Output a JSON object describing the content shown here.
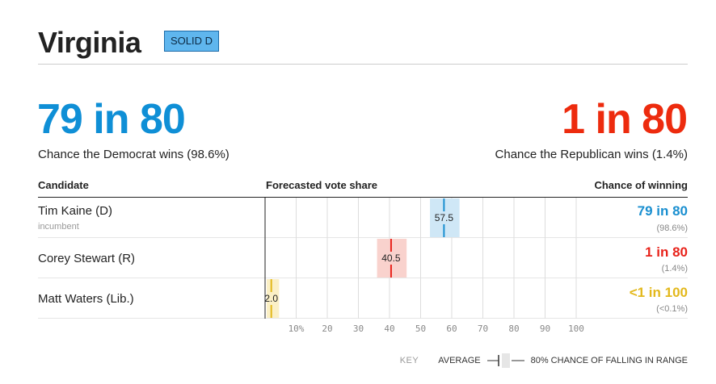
{
  "header": {
    "title": "Virginia",
    "rating": "SOLID D"
  },
  "odds": {
    "dem": {
      "value": "79 in 80",
      "caption": "Chance the Democrat wins (98.6%)",
      "color": "#0f8fd6"
    },
    "rep": {
      "value": "1 in 80",
      "caption": "Chance the Republican wins (1.4%)",
      "color": "#ed2b0e"
    }
  },
  "table": {
    "headers": {
      "candidate": "Candidate",
      "vote_share": "Forecasted vote share",
      "chance": "Chance of winning"
    },
    "rows": [
      {
        "name": "Tim Kaine (D)",
        "note": "incumbent",
        "win": "79 in 80",
        "win_pct": "(98.6%)"
      },
      {
        "name": "Corey Stewart (R)",
        "note": "",
        "win": "1 in 80",
        "win_pct": "(1.4%)"
      },
      {
        "name": "Matt Waters (Lib.)",
        "note": "",
        "win": "<1 in 100",
        "win_pct": "(<0.1%)"
      }
    ]
  },
  "chart_data": {
    "type": "range",
    "xlim": [
      0,
      100
    ],
    "ticks": [
      "10%",
      "20",
      "30",
      "40",
      "50",
      "60",
      "70",
      "80",
      "90",
      "100"
    ],
    "tick_values": [
      10,
      20,
      30,
      40,
      50,
      60,
      70,
      80,
      90,
      100
    ],
    "series": [
      {
        "name": "Tim Kaine (D)",
        "average": 57.5,
        "label": "57.5",
        "range": [
          53,
          62.5
        ],
        "color": "#1a8fd0",
        "range_color": "#cfe7f6"
      },
      {
        "name": "Corey Stewart (R)",
        "average": 40.5,
        "label": "40.5",
        "range": [
          36,
          45.5
        ],
        "color": "#e8231b",
        "range_color": "#f9d2cd"
      },
      {
        "name": "Matt Waters (Lib.)",
        "average": 2.0,
        "label": "2.0",
        "range": [
          0.5,
          4.5
        ],
        "color": "#e3b81b",
        "range_color": "#fbf0c6"
      }
    ]
  },
  "key": {
    "label": "KEY",
    "average": "AVERAGE",
    "range": "80% CHANCE OF FALLING IN RANGE"
  }
}
